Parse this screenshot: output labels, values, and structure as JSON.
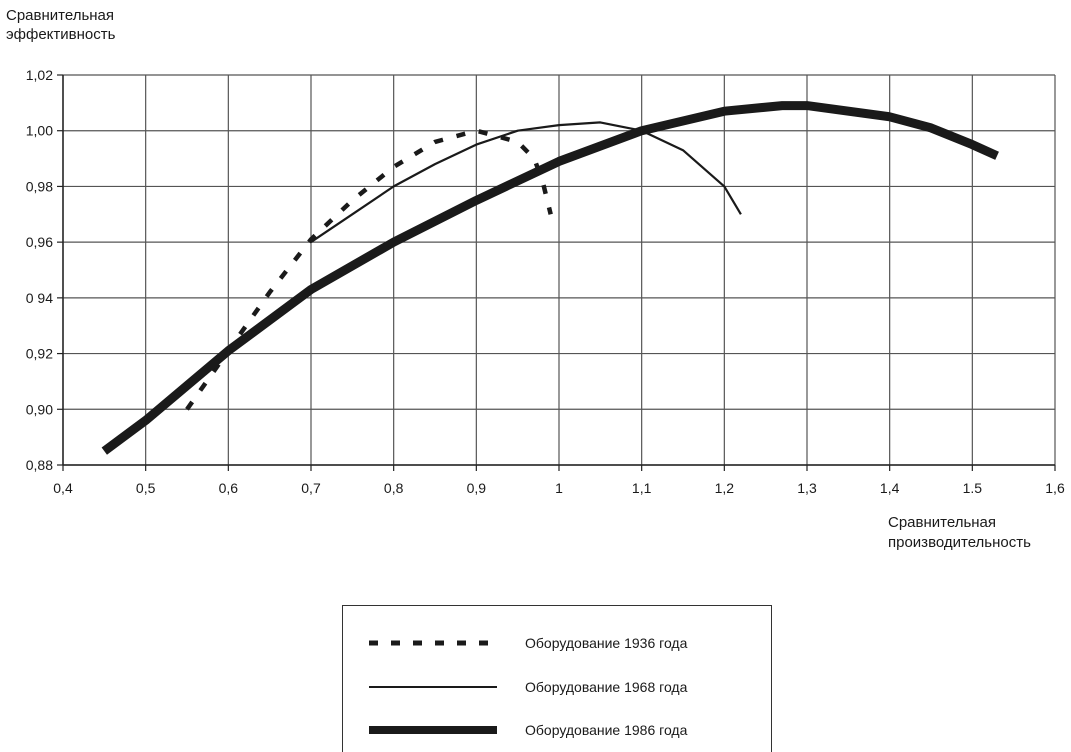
{
  "chart_data": {
    "type": "line",
    "ylabel_lines": [
      "Сравнительная",
      "эффективность"
    ],
    "xlabel_lines": [
      "Сравнительная",
      "производительность"
    ],
    "xlim": [
      0.4,
      1.6
    ],
    "ylim": [
      0.88,
      1.02
    ],
    "x_ticks": [
      0.4,
      0.5,
      0.6,
      0.7,
      0.8,
      0.9,
      1.0,
      1.1,
      1.2,
      1.3,
      1.4,
      1.5,
      1.6
    ],
    "x_tick_labels": [
      "0,4",
      "0,5",
      "0,6",
      "0,7",
      "0,8",
      "0,9",
      "1",
      "1,1",
      "1,2",
      "1,3",
      "1,4",
      "1.5",
      "1,6"
    ],
    "y_ticks": [
      0.88,
      0.9,
      0.92,
      0.94,
      0.96,
      0.98,
      1.0,
      1.02
    ],
    "y_tick_labels": [
      "0,88",
      "0,90",
      "0,92",
      "0 94",
      "0,96",
      "0,98",
      "1,00",
      "1,02"
    ],
    "grid": true,
    "legend_position": "bottom-center",
    "series": [
      {
        "name": "Оборудование 1936 года",
        "style": "dashed",
        "color": "#1a1a1a",
        "x": [
          0.55,
          0.6,
          0.65,
          0.7,
          0.75,
          0.8,
          0.85,
          0.9,
          0.95,
          0.97,
          0.98,
          0.99
        ],
        "y": [
          0.9,
          0.921,
          0.942,
          0.961,
          0.975,
          0.987,
          0.996,
          1.0,
          0.996,
          0.99,
          0.982,
          0.97
        ]
      },
      {
        "name": "Оборудование 1968 года",
        "style": "thin",
        "color": "#1a1a1a",
        "x": [
          0.7,
          0.75,
          0.8,
          0.85,
          0.9,
          0.95,
          1.0,
          1.05,
          1.1,
          1.15,
          1.2,
          1.22
        ],
        "y": [
          0.96,
          0.97,
          0.98,
          0.988,
          0.995,
          1.0,
          1.002,
          1.003,
          1.0,
          0.993,
          0.98,
          0.97
        ]
      },
      {
        "name": "Оборудование 1986 года",
        "style": "thick",
        "color": "#1a1a1a",
        "x": [
          0.45,
          0.5,
          0.6,
          0.7,
          0.8,
          0.9,
          1.0,
          1.1,
          1.2,
          1.27,
          1.3,
          1.4,
          1.45,
          1.5,
          1.53
        ],
        "y": [
          0.885,
          0.896,
          0.921,
          0.943,
          0.96,
          0.975,
          0.989,
          1.0,
          1.007,
          1.009,
          1.009,
          1.005,
          1.001,
          0.995,
          0.991
        ]
      }
    ]
  }
}
